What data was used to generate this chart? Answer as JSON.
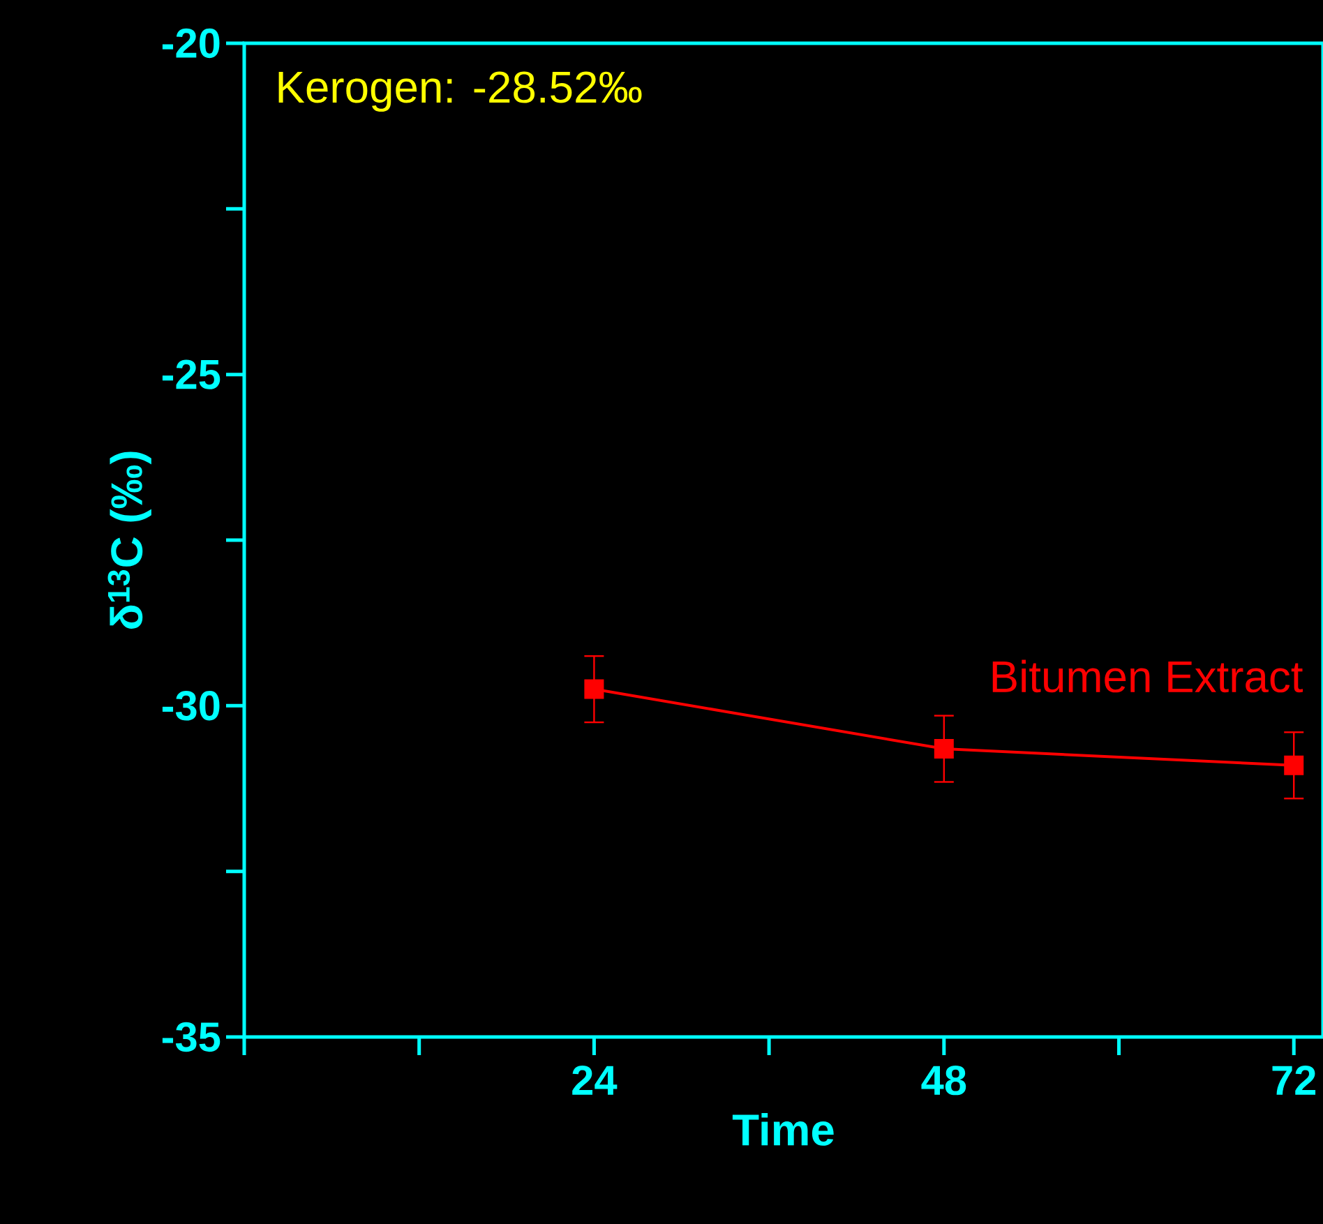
{
  "chart_data": {
    "type": "line",
    "xlabel": "Time",
    "ylabel": "δ$^{13}$C (‰)",
    "annotations": [
      "Kerogen: -28.52‰"
    ],
    "x": [
      24,
      48,
      72
    ],
    "series": [
      {
        "name": "Bitumen Extract",
        "color": "#ff0000",
        "values": [
          -29.75,
          -30.65,
          -30.9
        ],
        "errors": [
          0.5,
          0.5,
          0.5
        ]
      }
    ],
    "xlim": [
      0,
      74
    ],
    "xticks": [
      {
        "value": 0,
        "label": null
      },
      {
        "value": 12,
        "label": null
      },
      24,
      {
        "value": 36,
        "label": null
      },
      48,
      {
        "value": 60,
        "label": null
      },
      72
    ],
    "ylim": [
      -35,
      -20
    ],
    "yticks": [
      -35,
      {
        "value": -32.5,
        "label": null
      },
      -30,
      {
        "value": -27.5,
        "label": null
      },
      -25,
      {
        "value": -22.5,
        "label": null
      },
      -20
    ],
    "marker": "square",
    "line_style": "solid"
  }
}
